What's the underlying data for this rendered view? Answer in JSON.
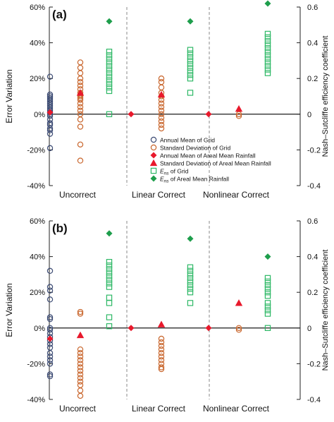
{
  "colors": {
    "grid_circle": "#3b4a73",
    "areal_sd": "#c8642a",
    "areal_mean": "#e8192c",
    "ens_grid": "#2eb866",
    "ens_areal": "#1e9e4c",
    "axis": "#222222",
    "separator": "#888888"
  },
  "legend": {
    "items": [
      {
        "marker": "circle",
        "color_key": "grid_circle",
        "label": "Annual Mean of Grid"
      },
      {
        "marker": "circle",
        "color_key": "areal_sd",
        "label": "Standard Deviation of Grid"
      },
      {
        "marker": "diamond-filled",
        "color_key": "areal_mean",
        "label": "Annual Mean of Areal Mean Rainfall"
      },
      {
        "marker": "triangle-filled",
        "color_key": "areal_mean",
        "label": "Standard Deviation of Areal Mean Rainfall"
      },
      {
        "marker": "square",
        "color_key": "ens_grid",
        "label": "E_ns of Grid"
      },
      {
        "marker": "diamond-filled",
        "color_key": "ens_areal",
        "label": "E_ns of Areal Mean Rainfall"
      }
    ]
  },
  "chart_data": [
    {
      "type": "scatter",
      "panel_label": "(a)",
      "ylabel_left": "Error Variation",
      "ylabel_right": "Nash–Sutcliffe efficiency coefficient",
      "ylim_left": [
        -40,
        60
      ],
      "yticks_left": [
        "-40%",
        "-20%",
        "0%",
        "20%",
        "40%",
        "60%"
      ],
      "ylim_right": [
        -0.4,
        0.6
      ],
      "yticks_right": [
        "-0.4",
        "-0.2",
        "0",
        "0.2",
        "0.4",
        "0.6"
      ],
      "groups": [
        "Uncorrect",
        "Linear Correct",
        "Nonlinear Correct"
      ],
      "series": [
        {
          "name": "Annual Mean of Grid",
          "key": "grid_circle",
          "marker": "circle",
          "axis": "left",
          "points": [
            [
              0,
              21
            ],
            [
              0,
              11
            ],
            [
              0,
              10
            ],
            [
              0,
              9
            ],
            [
              0,
              8
            ],
            [
              0,
              7
            ],
            [
              0,
              6
            ],
            [
              0,
              5
            ],
            [
              0,
              4
            ],
            [
              0,
              3
            ],
            [
              0,
              2
            ],
            [
              0,
              1
            ],
            [
              0,
              0
            ],
            [
              0,
              -1
            ],
            [
              0,
              -3
            ],
            [
              0,
              -5
            ],
            [
              0,
              -6
            ],
            [
              0,
              -8
            ],
            [
              0,
              -9
            ],
            [
              0,
              -11
            ],
            [
              0,
              -19
            ]
          ]
        },
        {
          "name": "Standard Deviation of Grid",
          "key": "areal_sd",
          "marker": "circle",
          "axis": "left",
          "points": [
            [
              0,
              29
            ],
            [
              0,
              26
            ],
            [
              0,
              23
            ],
            [
              0,
              20
            ],
            [
              0,
              18
            ],
            [
              0,
              16
            ],
            [
              0,
              14
            ],
            [
              0,
              12
            ],
            [
              0,
              11
            ],
            [
              0,
              10
            ],
            [
              0,
              9
            ],
            [
              0,
              8
            ],
            [
              0,
              6
            ],
            [
              0,
              4
            ],
            [
              0,
              2
            ],
            [
              0,
              0
            ],
            [
              0,
              -3
            ],
            [
              0,
              -7
            ],
            [
              0,
              -17
            ],
            [
              0,
              -26
            ],
            [
              1,
              20
            ],
            [
              1,
              18
            ],
            [
              1,
              15
            ],
            [
              1,
              12
            ],
            [
              1,
              10
            ],
            [
              1,
              8
            ],
            [
              1,
              6
            ],
            [
              1,
              4
            ],
            [
              1,
              2
            ],
            [
              1,
              0
            ],
            [
              1,
              -2
            ],
            [
              1,
              -4
            ],
            [
              1,
              -6
            ],
            [
              1,
              -8
            ],
            [
              2,
              0
            ],
            [
              2,
              -1
            ]
          ]
        },
        {
          "name": "Annual Mean of Areal Mean Rainfall",
          "key": "areal_mean",
          "marker": "diamond-filled",
          "axis": "left",
          "points": [
            [
              0,
              1
            ],
            [
              1,
              0
            ],
            [
              2,
              0
            ]
          ]
        },
        {
          "name": "Standard Deviation of Areal Mean Rainfall",
          "key": "areal_mean",
          "marker": "triangle-filled",
          "axis": "left",
          "points": [
            [
              0,
              12
            ],
            [
              1,
              11
            ],
            [
              2,
              3
            ]
          ]
        },
        {
          "name": "E_ns of Grid",
          "key": "ens_grid",
          "marker": "square",
          "axis": "right",
          "points": [
            [
              0,
              0.35
            ],
            [
              0,
              0.33
            ],
            [
              0,
              0.31
            ],
            [
              0,
              0.29
            ],
            [
              0,
              0.27
            ],
            [
              0,
              0.25
            ],
            [
              0,
              0.23
            ],
            [
              0,
              0.21
            ],
            [
              0,
              0.19
            ],
            [
              0,
              0.17
            ],
            [
              0,
              0.15
            ],
            [
              0,
              0.13
            ],
            [
              0,
              0
            ],
            [
              1,
              0.36
            ],
            [
              1,
              0.34
            ],
            [
              1,
              0.32
            ],
            [
              1,
              0.3
            ],
            [
              1,
              0.28
            ],
            [
              1,
              0.26
            ],
            [
              1,
              0.24
            ],
            [
              1,
              0.22
            ],
            [
              1,
              0.2
            ],
            [
              1,
              0.12
            ],
            [
              2,
              0.45
            ],
            [
              2,
              0.43
            ],
            [
              2,
              0.41
            ],
            [
              2,
              0.39
            ],
            [
              2,
              0.37
            ],
            [
              2,
              0.35
            ],
            [
              2,
              0.33
            ],
            [
              2,
              0.31
            ],
            [
              2,
              0.29
            ],
            [
              2,
              0.27
            ],
            [
              2,
              0.25
            ],
            [
              2,
              0.23
            ]
          ]
        },
        {
          "name": "E_ns of Areal Mean Rainfall",
          "key": "ens_areal",
          "marker": "diamond-filled",
          "axis": "right",
          "points": [
            [
              0,
              0.52
            ],
            [
              1,
              0.52
            ],
            [
              2,
              0.62
            ]
          ]
        }
      ]
    },
    {
      "type": "scatter",
      "panel_label": "(b)",
      "ylabel_left": "Error Variation",
      "ylabel_right": "Nash–Sutcliffe efficiency coefficient",
      "ylim_left": [
        -40,
        60
      ],
      "yticks_left": [
        "-40%",
        "-20%",
        "0%",
        "20%",
        "40%",
        "60%"
      ],
      "ylim_right": [
        -0.4,
        0.6
      ],
      "yticks_right": [
        "-0.4",
        "-0.2",
        "0",
        "0.2",
        "0.4",
        "0.6"
      ],
      "groups": [
        "Uncorrect",
        "Linear Correct",
        "Nonlinear Correct"
      ],
      "series": [
        {
          "name": "Annual Mean of Grid",
          "key": "grid_circle",
          "marker": "circle",
          "axis": "left",
          "points": [
            [
              0,
              32
            ],
            [
              0,
              23
            ],
            [
              0,
              21
            ],
            [
              0,
              16
            ],
            [
              0,
              6
            ],
            [
              0,
              5
            ],
            [
              0,
              0
            ],
            [
              0,
              -1
            ],
            [
              0,
              -3
            ],
            [
              0,
              -5
            ],
            [
              0,
              -7
            ],
            [
              0,
              -9
            ],
            [
              0,
              -11
            ],
            [
              0,
              -14
            ],
            [
              0,
              -16
            ],
            [
              0,
              -18
            ],
            [
              0,
              -20
            ],
            [
              0,
              -26
            ],
            [
              0,
              -27
            ]
          ]
        },
        {
          "name": "Standard Deviation of Grid",
          "key": "areal_sd",
          "marker": "circle",
          "axis": "left",
          "points": [
            [
              0,
              9
            ],
            [
              0,
              8
            ],
            [
              0,
              -12
            ],
            [
              0,
              -14
            ],
            [
              0,
              -16
            ],
            [
              0,
              -18
            ],
            [
              0,
              -20
            ],
            [
              0,
              -22
            ],
            [
              0,
              -24
            ],
            [
              0,
              -26
            ],
            [
              0,
              -28
            ],
            [
              0,
              -30
            ],
            [
              0,
              -32
            ],
            [
              0,
              -35
            ],
            [
              0,
              -38
            ],
            [
              1,
              -6
            ],
            [
              1,
              -8
            ],
            [
              1,
              -10
            ],
            [
              1,
              -12
            ],
            [
              1,
              -14
            ],
            [
              1,
              -16
            ],
            [
              1,
              -18
            ],
            [
              1,
              -20
            ],
            [
              1,
              -22
            ],
            [
              1,
              -23
            ],
            [
              2,
              0
            ],
            [
              2,
              -1
            ]
          ]
        },
        {
          "name": "Annual Mean of Areal Mean Rainfall",
          "key": "areal_mean",
          "marker": "diamond-filled",
          "axis": "left",
          "points": [
            [
              0,
              -6
            ],
            [
              1,
              0
            ],
            [
              2,
              0
            ]
          ]
        },
        {
          "name": "Standard Deviation of Areal Mean Rainfall",
          "key": "areal_mean",
          "marker": "triangle-filled",
          "axis": "left",
          "points": [
            [
              0,
              -4
            ],
            [
              1,
              2
            ],
            [
              2,
              14
            ]
          ]
        },
        {
          "name": "E_ns of Grid",
          "key": "ens_grid",
          "marker": "square",
          "axis": "right",
          "points": [
            [
              0,
              0.37
            ],
            [
              0,
              0.35
            ],
            [
              0,
              0.33
            ],
            [
              0,
              0.31
            ],
            [
              0,
              0.29
            ],
            [
              0,
              0.27
            ],
            [
              0,
              0.25
            ],
            [
              0,
              0.23
            ],
            [
              0,
              0.17
            ],
            [
              0,
              0.14
            ],
            [
              0,
              0.06
            ],
            [
              0,
              0.01
            ],
            [
              1,
              0.34
            ],
            [
              1,
              0.32
            ],
            [
              1,
              0.3
            ],
            [
              1,
              0.28
            ],
            [
              1,
              0.26
            ],
            [
              1,
              0.24
            ],
            [
              1,
              0.22
            ],
            [
              1,
              0.2
            ],
            [
              1,
              0.14
            ],
            [
              2,
              0.28
            ],
            [
              2,
              0.26
            ],
            [
              2,
              0.24
            ],
            [
              2,
              0.22
            ],
            [
              2,
              0.2
            ],
            [
              2,
              0.18
            ],
            [
              2,
              0.14
            ],
            [
              2,
              0.12
            ],
            [
              2,
              0.1
            ],
            [
              2,
              0.08
            ],
            [
              2,
              0
            ]
          ]
        },
        {
          "name": "E_ns of Areal Mean Rainfall",
          "key": "ens_areal",
          "marker": "diamond-filled",
          "axis": "right",
          "points": [
            [
              0,
              0.53
            ],
            [
              1,
              0.5
            ],
            [
              2,
              0.4
            ]
          ]
        }
      ]
    }
  ]
}
